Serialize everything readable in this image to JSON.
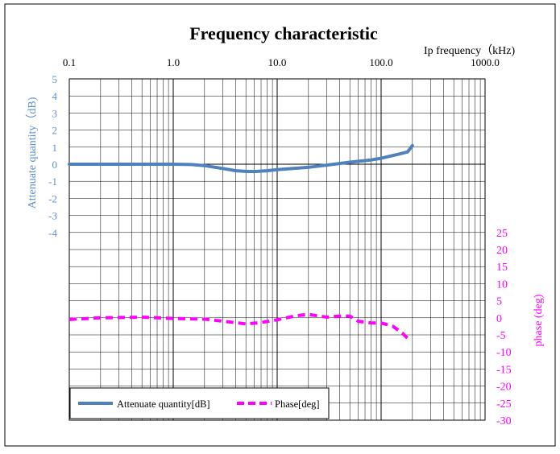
{
  "chart_data": {
    "type": "line",
    "title": "Frequency characteristic",
    "xlabel": "Ip frequency（kHz)",
    "ylabel": "Attenuate quantity（dB)",
    "y2label": "phase (deg)",
    "xscale": "log",
    "xlim": [
      0.1,
      1000.0
    ],
    "x_tick_labels": [
      "0.1",
      "1.0",
      "10.0",
      "100.0",
      "1000.0"
    ],
    "ylim": [
      -15,
      5
    ],
    "y_tick_labels": [
      "5",
      "4",
      "3",
      "2",
      "1",
      "0",
      "-1",
      "-2",
      "-3",
      "-4"
    ],
    "y2lim": [
      -30,
      70
    ],
    "y2_tick_labels": [
      "25",
      "20",
      "15",
      "10",
      "5",
      "0",
      "-5",
      "-10",
      "-15",
      "-20",
      "-25",
      "-30"
    ],
    "grid": true,
    "legend_position": "bottom-left",
    "colors": {
      "attenuation": "#4f81bd",
      "phase": "#ff00ff",
      "left_axis_text": "#5b8ed6"
    },
    "series": [
      {
        "name": "Attenuate quantity[dB]",
        "axis": "left",
        "style": "solid",
        "x": [
          0.1,
          0.5,
          1.0,
          1.5,
          2.0,
          3.0,
          4.0,
          5.0,
          6.0,
          8.0,
          10.0,
          20.0,
          30.0,
          50.0,
          80.0,
          100.0,
          150.0,
          180.0,
          200.0
        ],
        "y": [
          0.0,
          0.0,
          0.0,
          -0.02,
          -0.08,
          -0.25,
          -0.38,
          -0.42,
          -0.43,
          -0.38,
          -0.32,
          -0.18,
          -0.05,
          0.12,
          0.25,
          0.35,
          0.6,
          0.72,
          1.1
        ]
      },
      {
        "name": "Phase[deg]",
        "axis": "right",
        "style": "dashed",
        "x": [
          0.1,
          0.2,
          0.5,
          1.0,
          2.0,
          3.0,
          5.0,
          7.0,
          10.0,
          15.0,
          20.0,
          30.0,
          40.0,
          50.0,
          60.0,
          80.0,
          100.0,
          130.0,
          160.0,
          180.0
        ],
        "y": [
          -0.5,
          0.0,
          0.2,
          -0.2,
          -0.4,
          -1.0,
          -1.8,
          -1.4,
          -0.6,
          0.6,
          1.0,
          0.2,
          0.5,
          0.5,
          -1.0,
          -1.5,
          -1.5,
          -2.5,
          -4.5,
          -6.0
        ]
      }
    ]
  }
}
